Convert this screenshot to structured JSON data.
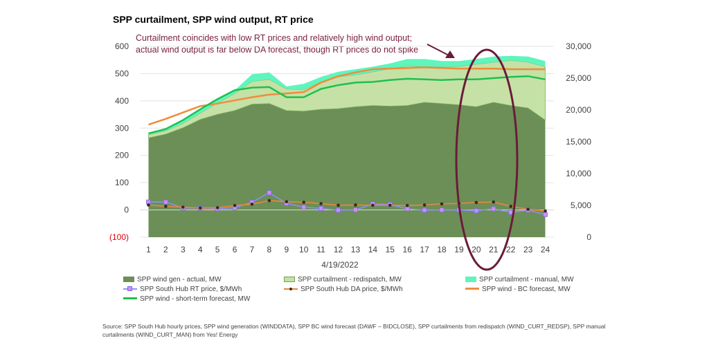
{
  "title": "SPP curtailment, SPP wind output, RT price",
  "annotation": "Curtailment coincides with low RT prices and relatively high wind output; actual wind output is far below DA forecast, though RT prices do not spike",
  "source": "Source: SPP South Hub hourly prices, SPP wind generation (WINDDATA), SPP BC wind forecast (DAWF – BIDCLOSE), SPP curtailments from redispatch (WIND_CURT_REDSP), SPP manual curtailments (WIND_CURT_MAN) from Yes! Energy",
  "colors": {
    "actual": "#6b8f57",
    "redispatch": "#c5e1a5",
    "manual": "#5ff5bd",
    "rt_line": "#8f8fff",
    "rt_marker": "#d38cf0",
    "da_line": "#e2863f",
    "da_marker": "#3a2a1a",
    "bc_forecast": "#ef8c3c",
    "st_forecast": "#1fbf4f",
    "highlight": "#6b1a3a"
  },
  "legend": [
    "SPP wind gen - actual, MW",
    "SPP curtailment - redispatch, MW",
    "SPP curtailment - manual, MW",
    "SPP South Hub RT price, $/MWh",
    "SPP South Hub DA price, $/MWh",
    "SPP wind - BC forecast, MW",
    "SPP wind - short-term forecast, MW"
  ],
  "chart_data": {
    "type": "area",
    "title": "SPP curtailment, SPP wind output, RT price",
    "xlabel": "4/19/2022",
    "categories": [
      "1",
      "2",
      "3",
      "4",
      "5",
      "6",
      "7",
      "8",
      "9",
      "10",
      "11",
      "12",
      "13",
      "14",
      "15",
      "16",
      "17",
      "18",
      "19",
      "20",
      "21",
      "22",
      "23",
      "24"
    ],
    "y_left": {
      "ticks": [
        "(100)",
        "0",
        "100",
        "200",
        "300",
        "400",
        "500",
        "600"
      ],
      "ylim": [
        -100,
        600
      ],
      "unit": "$/MWh"
    },
    "y_right": {
      "ticks": [
        "0",
        "5,000",
        "10,000",
        "15,000",
        "20,000",
        "25,000",
        "30,000"
      ],
      "ylim": [
        0,
        30000
      ],
      "unit": "MW"
    },
    "series": [
      {
        "name": "SPP wind gen - actual, MW",
        "kind": "stacked-area",
        "axis": "right",
        "values": [
          15600,
          16200,
          17200,
          18500,
          19300,
          19900,
          20900,
          21000,
          19900,
          19800,
          20100,
          20200,
          20500,
          20700,
          20600,
          20700,
          21200,
          21000,
          20800,
          20500,
          21200,
          20700,
          20300,
          18400
        ]
      },
      {
        "name": "SPP curtailment - redispatch, MW",
        "kind": "stacked-area",
        "axis": "right",
        "values": [
          500,
          500,
          700,
          1000,
          1800,
          2700,
          3600,
          3800,
          3400,
          3400,
          4300,
          5000,
          5000,
          5300,
          5900,
          6200,
          5600,
          5800,
          6000,
          6700,
          6300,
          7100,
          7200,
          8400
        ]
      },
      {
        "name": "SPP curtailment - manual, MW",
        "kind": "stacked-area",
        "axis": "right",
        "values": [
          200,
          300,
          500,
          600,
          700,
          500,
          1100,
          1100,
          400,
          900,
          800,
          800,
          900,
          800,
          800,
          1100,
          1200,
          900,
          900,
          800,
          900,
          700,
          900,
          900
        ]
      },
      {
        "name": "SPP South Hub RT price, $/MWh",
        "kind": "line-marker",
        "axis": "left",
        "values": [
          29,
          29,
          7,
          6,
          4,
          8,
          28,
          63,
          24,
          10,
          5,
          -1,
          0,
          22,
          20,
          4,
          -1,
          0,
          0,
          -3,
          4,
          -9,
          -1,
          -17
        ]
      },
      {
        "name": "SPP South Hub DA price, $/MWh",
        "kind": "line-dot",
        "axis": "left",
        "values": [
          18,
          13,
          10,
          7,
          8,
          16,
          21,
          34,
          30,
          28,
          23,
          17,
          18,
          17,
          17,
          16,
          18,
          22,
          24,
          27,
          29,
          13,
          2,
          -4
        ]
      },
      {
        "name": "SPP wind - BC forecast, MW",
        "kind": "line",
        "axis": "right",
        "values": [
          17700,
          18600,
          19600,
          20600,
          21000,
          21500,
          22000,
          22400,
          22600,
          22800,
          24300,
          25300,
          25900,
          26400,
          26500,
          26600,
          26700,
          26600,
          26500,
          26500,
          26500,
          26400,
          26400,
          26400
        ]
      },
      {
        "name": "SPP wind - short-term forecast, MW",
        "kind": "line",
        "axis": "right",
        "values": [
          16300,
          17000,
          18400,
          20100,
          21700,
          23100,
          23500,
          23600,
          22000,
          22000,
          23300,
          23900,
          24300,
          24400,
          24700,
          24900,
          24800,
          24700,
          24800,
          24800,
          25000,
          25200,
          25300,
          24800
        ]
      }
    ]
  }
}
